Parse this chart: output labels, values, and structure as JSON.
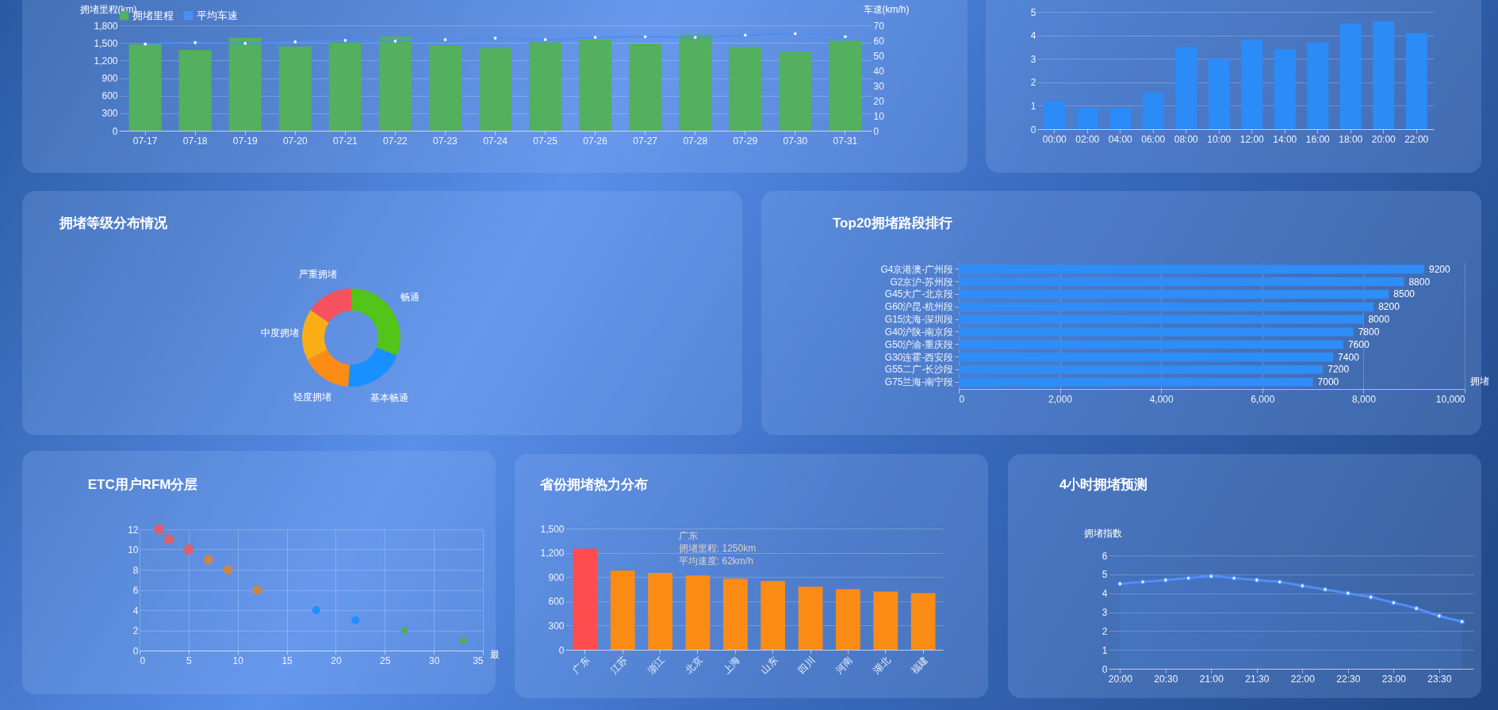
{
  "chart_data": [
    {
      "type": "bar",
      "ylabel": "拥堵里程(km)",
      "y2label": "车速(km/h)",
      "categories": [
        "07-17",
        "07-18",
        "07-19",
        "07-20",
        "07-21",
        "07-22",
        "07-23",
        "07-24",
        "07-25",
        "07-26",
        "07-27",
        "07-28",
        "07-29",
        "07-30",
        "07-31"
      ],
      "series": [
        {
          "name": "拥堵里程",
          "color": "#52b05e",
          "values": [
            1480,
            1380,
            1590,
            1440,
            1510,
            1610,
            1460,
            1410,
            1510,
            1560,
            1490,
            1640,
            1430,
            1350,
            1540
          ]
        },
        {
          "name": "平均车速",
          "type": "line",
          "axis": "y2",
          "color": "#4d8ef5",
          "values": [
            57.5,
            58.5,
            58,
            59,
            60,
            59.5,
            60.5,
            61.5,
            60.5,
            62,
            62.5,
            62,
            63.5,
            64.5,
            62.5
          ]
        }
      ],
      "ylim": [
        0,
        1800
      ],
      "yticks": [
        0,
        300,
        600,
        900,
        {
          "value": 1200,
          "label": "1,200"
        },
        {
          "value": 1500,
          "label": "1,500"
        },
        {
          "value": 1800,
          "label": "1,800"
        }
      ],
      "y2lim": [
        0,
        70
      ],
      "y2ticks": [
        0,
        10,
        20,
        30,
        40,
        50,
        60,
        70
      ],
      "grid": "y",
      "legend": "top",
      "marker": "circle"
    },
    {
      "type": "bar",
      "categories": [
        "00:00",
        "02:00",
        "04:00",
        "06:00",
        "08:00",
        "10:00",
        "12:00",
        "14:00",
        "16:00",
        "18:00",
        "20:00",
        "22:00"
      ],
      "values": [
        1.2,
        0.9,
        0.9,
        1.55,
        3.5,
        3.0,
        3.8,
        3.4,
        3.7,
        4.5,
        4.6,
        4.1
      ],
      "color": "#2b8cf8",
      "ylim": [
        0,
        5
      ],
      "yticks": [
        0,
        1,
        2,
        3,
        4,
        5
      ],
      "grid": "y"
    },
    {
      "type": "donut",
      "title": "拥堵等级分布情况",
      "categories": [
        "畅通",
        "基本畅通",
        "轻度拥堵",
        "中度拥堵",
        "严重拥堵"
      ],
      "values": [
        31,
        20,
        16.5,
        17,
        15.5
      ],
      "colors": [
        "#52c41a",
        "#1890ff",
        "#fa8c16",
        "#faad14",
        "#f5515f"
      ]
    },
    {
      "type": "bar",
      "title": "Top20拥堵路段排行",
      "orientation": "horizontal",
      "xlabel": "拥堵",
      "categories": [
        "G4京港澳-广州段",
        "G2京沪-苏州段",
        "G45大广-北京段",
        "G60沪昆-杭州段",
        "G15沈海-深圳段",
        "G40沪陕-南京段",
        "G50沪渝-重庆段",
        "G30连霍-西安段",
        "G55二广-长沙段",
        "G75兰海-南宁段"
      ],
      "values": [
        9200,
        8800,
        8500,
        8200,
        8000,
        7800,
        7600,
        7400,
        7200,
        7000
      ],
      "color": "#2f8df7",
      "data_labels": true,
      "xlim": [
        0,
        10000
      ],
      "xticks": [
        0,
        {
          "value": 2000,
          "label": "2,000"
        },
        {
          "value": 4000,
          "label": "4,000"
        },
        {
          "value": 6000,
          "label": "6,000"
        },
        {
          "value": 8000,
          "label": "8,000"
        },
        {
          "value": 10000,
          "label": "10,000"
        }
      ],
      "grid": "x"
    },
    {
      "type": "bubble",
      "title": "ETC用户RFM分层",
      "xlabel": "最",
      "series": [
        {
          "color": "#d9606f",
          "x": [
            2,
            3,
            5
          ],
          "values": [
            12,
            11,
            10
          ],
          "sizes": [
            1,
            1,
            1
          ]
        },
        {
          "color": "#c8874f",
          "x": [
            7,
            9,
            12
          ],
          "values": [
            9,
            8,
            6
          ],
          "sizes": [
            0.85,
            0.85,
            0.85
          ]
        },
        {
          "color": "#1e90ff",
          "x": [
            18,
            22
          ],
          "values": [
            4,
            3
          ],
          "sizes": [
            0.6,
            0.6
          ]
        },
        {
          "color": "#4caf50",
          "x": [
            27,
            33
          ],
          "values": [
            2,
            1
          ],
          "sizes": [
            0.45,
            0.45
          ]
        }
      ],
      "xlim": [
        0,
        35
      ],
      "xticks": [
        0,
        5,
        10,
        15,
        20,
        25,
        30,
        35
      ],
      "ylim": [
        0,
        12
      ],
      "yticks": [
        0,
        2,
        4,
        6,
        8,
        10,
        12
      ],
      "grid": true
    },
    {
      "type": "bar",
      "title": "省份拥堵热力分布",
      "categories": [
        "广东",
        "江苏",
        "浙江",
        "北京",
        "上海",
        "山东",
        "四川",
        "河南",
        "湖北",
        "福建"
      ],
      "values": [
        1250,
        980,
        950,
        920,
        880,
        850,
        780,
        750,
        720,
        700
      ],
      "colors": [
        "#ff4d4f",
        "#fa8c16",
        "#fa8c16",
        "#fa8c16",
        "#fa8c16",
        "#fa8c16",
        "#fa8c16",
        "#fa8c16",
        "#fa8c16",
        "#fa8c16"
      ],
      "ylim": [
        0,
        1500
      ],
      "yticks": [
        0,
        300,
        600,
        900,
        {
          "value": 1200,
          "label": "1,200"
        },
        {
          "value": 1500,
          "label": "1,500"
        }
      ],
      "grid": "y",
      "annotations": [
        "广东",
        "拥堵里程: 1250km",
        "平均速度: 62km/h"
      ]
    },
    {
      "type": "area",
      "title": "4小时拥堵预测",
      "ylabel": "拥堵指数",
      "x": [
        20,
        20.25,
        20.5,
        20.75,
        21,
        21.25,
        21.5,
        21.75,
        22,
        22.25,
        22.5,
        22.75,
        23,
        23.25,
        23.5,
        23.75
      ],
      "values": [
        4.5,
        4.6,
        4.7,
        4.8,
        4.9,
        4.8,
        4.7,
        4.6,
        4.4,
        4.2,
        4.0,
        3.8,
        3.5,
        3.2,
        2.8,
        2.5
      ],
      "color": "#4f8ff7",
      "marker": "circle",
      "xlim": [
        19.875,
        23.875
      ],
      "xticks": [
        {
          "value": 20,
          "label": "20:00"
        },
        {
          "value": 20.5,
          "label": "20:30"
        },
        {
          "value": 21,
          "label": "21:00"
        },
        {
          "value": 21.5,
          "label": "21:30"
        },
        {
          "value": 22,
          "label": "22:00"
        },
        {
          "value": 22.5,
          "label": "22:30"
        },
        {
          "value": 23,
          "label": "23:00"
        },
        {
          "value": 23.5,
          "label": "23:30"
        }
      ],
      "ylim": [
        0,
        6
      ],
      "yticks": [
        0,
        1,
        2,
        3,
        4,
        5,
        6
      ],
      "grid": "y"
    }
  ]
}
